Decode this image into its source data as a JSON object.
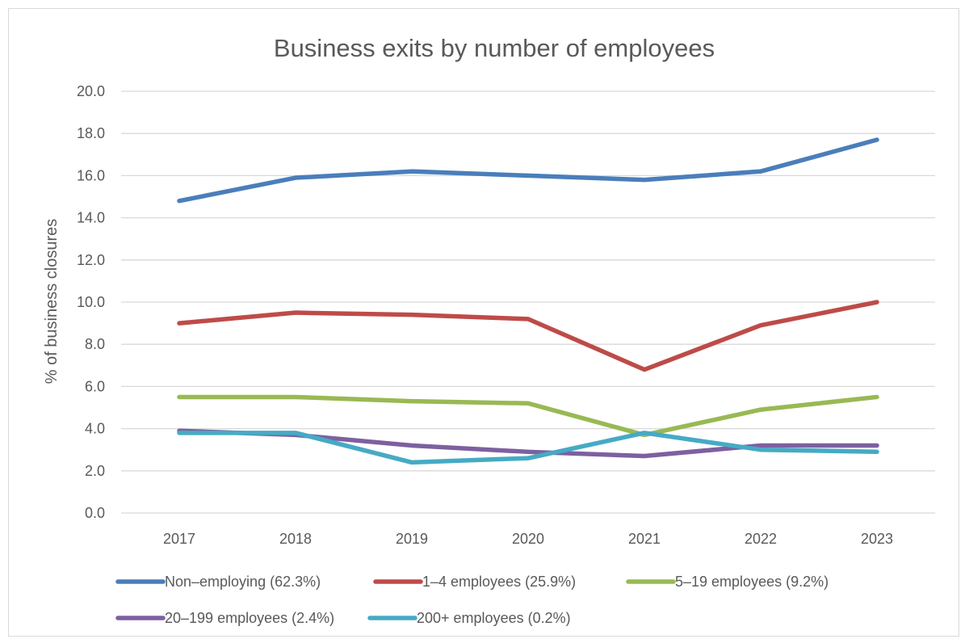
{
  "chart_data": {
    "type": "line",
    "title": "Business exits by number of employees",
    "xlabel": "",
    "ylabel": "% of business closures",
    "categories": [
      "2017",
      "2018",
      "2019",
      "2020",
      "2021",
      "2022",
      "2023"
    ],
    "ylim": [
      0,
      20
    ],
    "yticks": [
      "0.0",
      "2.0",
      "4.0",
      "6.0",
      "8.0",
      "10.0",
      "12.0",
      "14.0",
      "16.0",
      "18.0",
      "20.0"
    ],
    "grid": true,
    "legend_position": "bottom",
    "series": [
      {
        "name": "Non–employing (62.3%)",
        "color": "#4a7ebb",
        "values": [
          14.8,
          15.9,
          16.2,
          16.0,
          15.8,
          16.2,
          17.7
        ]
      },
      {
        "name": "1–4 employees (25.9%)",
        "color": "#be4b48",
        "values": [
          9.0,
          9.5,
          9.4,
          9.2,
          6.8,
          8.9,
          10.0
        ]
      },
      {
        "name": "5–19 employees (9.2%)",
        "color": "#98b954",
        "values": [
          5.5,
          5.5,
          5.3,
          5.2,
          3.7,
          4.9,
          5.5
        ]
      },
      {
        "name": "20–199 employees (2.4%)",
        "color": "#7d60a0",
        "values": [
          3.9,
          3.7,
          3.2,
          2.9,
          2.7,
          3.2,
          3.2
        ]
      },
      {
        "name": "200+ employees (0.2%)",
        "color": "#46aac5",
        "values": [
          3.8,
          3.8,
          2.4,
          2.6,
          3.8,
          3.0,
          2.9
        ]
      }
    ]
  }
}
